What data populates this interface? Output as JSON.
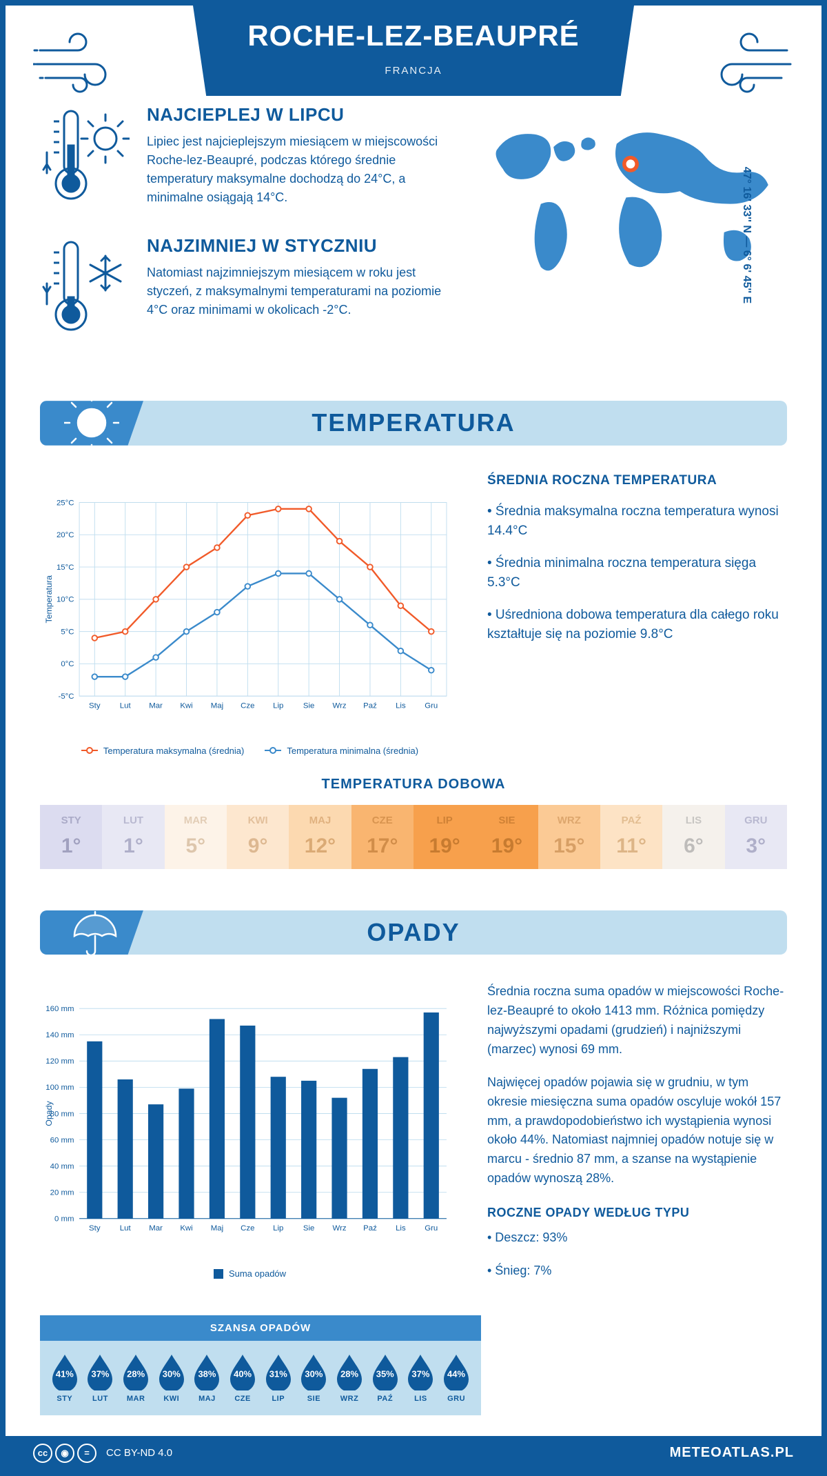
{
  "header": {
    "title": "ROCHE-LEZ-BEAUPRÉ",
    "country": "FRANCJA",
    "coords": "47° 16' 33'' N — 6° 6' 45'' E"
  },
  "intro": {
    "hot": {
      "title": "NAJCIEPLEJ W LIPCU",
      "text": "Lipiec jest najcieplejszym miesiącem w miejscowości Roche-lez-Beaupré, podczas którego średnie temperatury maksymalne dochodzą do 24°C, a minimalne osiągają 14°C."
    },
    "cold": {
      "title": "NAJZIMNIEJ W STYCZNIU",
      "text": "Natomiast najzimniejszym miesiącem w roku jest styczeń, z maksymalnymi temperaturami na poziomie 4°C oraz minimami w okolicach -2°C."
    }
  },
  "temp_section_title": "TEMPERATURA",
  "temp_chart": {
    "type": "line",
    "months": [
      "Sty",
      "Lut",
      "Mar",
      "Kwi",
      "Maj",
      "Cze",
      "Lip",
      "Sie",
      "Wrz",
      "Paź",
      "Lis",
      "Gru"
    ],
    "max": [
      4,
      5,
      10,
      15,
      18,
      23,
      24,
      24,
      19,
      15,
      9,
      5
    ],
    "min": [
      -2,
      -2,
      1,
      5,
      8,
      12,
      14,
      14,
      10,
      6,
      2,
      -1
    ],
    "max_color": "#f15a29",
    "min_color": "#3a8acb",
    "ylim": [
      -5,
      25
    ],
    "ytick_step": 5,
    "axis_label": "Temperatura",
    "legend_max": "Temperatura maksymalna (średnia)",
    "legend_min": "Temperatura minimalna (średnia)",
    "grid_color": "#c0deef",
    "background": "#ffffff"
  },
  "temp_info": {
    "heading": "ŚREDNIA ROCZNA TEMPERATURA",
    "b1": "• Średnia maksymalna roczna temperatura wynosi 14.4°C",
    "b2": "• Średnia minimalna roczna temperatura sięga 5.3°C",
    "b3": "• Uśredniona dobowa temperatura dla całego roku kształtuje się na poziomie 9.8°C"
  },
  "daily_temp": {
    "title": "TEMPERATURA DOBOWA",
    "months": [
      "STY",
      "LUT",
      "MAR",
      "KWI",
      "MAJ",
      "CZE",
      "LIP",
      "SIE",
      "WRZ",
      "PAŹ",
      "LIS",
      "GRU"
    ],
    "values": [
      "1°",
      "1°",
      "5°",
      "9°",
      "12°",
      "17°",
      "19°",
      "19°",
      "15°",
      "11°",
      "6°",
      "3°"
    ],
    "colors": [
      "#dcdcf0",
      "#e8e8f4",
      "#fdf3e8",
      "#fde7cf",
      "#fcd9b0",
      "#f9b570",
      "#f7a04c",
      "#f7a04c",
      "#fbca95",
      "#fde3c5",
      "#f5f1ec",
      "#e8e8f4"
    ],
    "text_colors": [
      "#7a7aa0",
      "#8a8aae",
      "#c9a985",
      "#c99968",
      "#c58b4f",
      "#b87430",
      "#a8641f",
      "#a8641f",
      "#c08446",
      "#c8985f",
      "#9a9a9a",
      "#8a8aae"
    ]
  },
  "precip_section_title": "OPADY",
  "precip_chart": {
    "type": "bar",
    "months": [
      "Sty",
      "Lut",
      "Mar",
      "Kwi",
      "Maj",
      "Cze",
      "Lip",
      "Sie",
      "Wrz",
      "Paź",
      "Lis",
      "Gru"
    ],
    "values": [
      135,
      106,
      87,
      99,
      152,
      147,
      108,
      105,
      92,
      114,
      123,
      157
    ],
    "bar_color": "#0f5a9c",
    "ylim": [
      0,
      160
    ],
    "ytick_step": 20,
    "axis_label": "Opady",
    "legend": "Suma opadów",
    "grid_color": "#c0deef",
    "bar_width": 0.5
  },
  "precip_info": {
    "p1": "Średnia roczna suma opadów w miejscowości Roche-lez-Beaupré to około 1413 mm. Różnica pomiędzy najwyższymi opadami (grudzień) i najniższymi (marzec) wynosi 69 mm.",
    "p2": "Najwięcej opadów pojawia się w grudniu, w tym okresie miesięczna suma opadów oscyluje wokół 157 mm, a prawdopodobieństwo ich wystąpienia wynosi około 44%. Natomiast najmniej opadów notuje się w marcu - średnio 87 mm, a szanse na wystąpienie opadów wynoszą 28%.",
    "type_heading": "ROCZNE OPADY WEDŁUG TYPU",
    "type_rain": "• Deszcz: 93%",
    "type_snow": "• Śnieg: 7%"
  },
  "chance": {
    "title": "SZANSA OPADÓW",
    "months": [
      "STY",
      "LUT",
      "MAR",
      "KWI",
      "MAJ",
      "CZE",
      "LIP",
      "SIE",
      "WRZ",
      "PAŹ",
      "LIS",
      "GRU"
    ],
    "values": [
      "41%",
      "37%",
      "28%",
      "30%",
      "38%",
      "40%",
      "31%",
      "30%",
      "28%",
      "35%",
      "37%",
      "44%"
    ],
    "drop_color": "#0f5a9c"
  },
  "footer": {
    "license": "CC BY-ND 4.0",
    "site": "METEOATLAS.PL"
  }
}
